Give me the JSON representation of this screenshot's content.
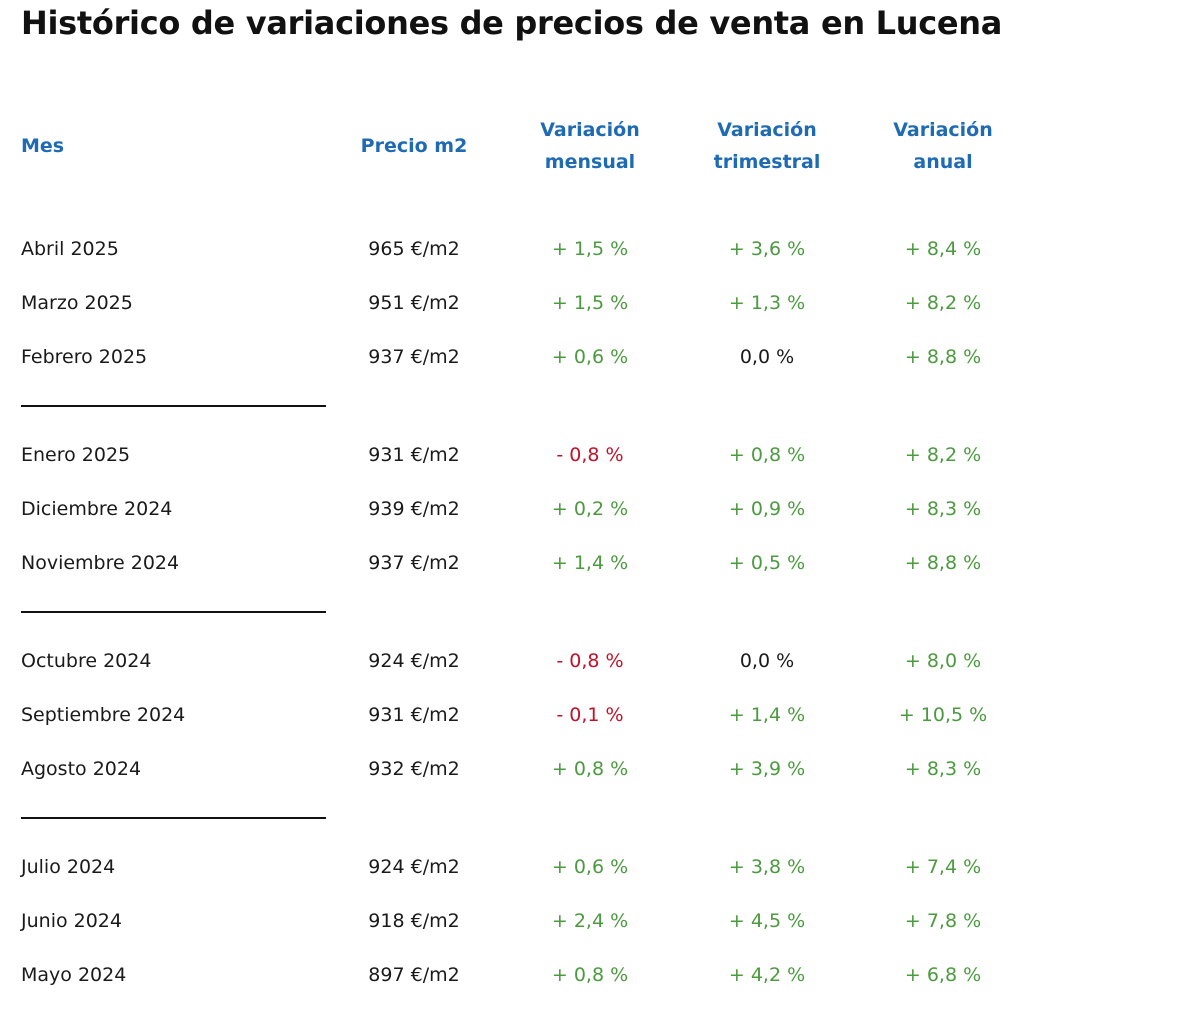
{
  "title": "Histórico de variaciones de precios de venta en Lucena",
  "columns": {
    "mes": "Mes",
    "precio": "Precio m2",
    "mensual": [
      "Variación",
      "mensual"
    ],
    "trimestral": [
      "Variación",
      "trimestral"
    ],
    "anual": [
      "Variación",
      "anual"
    ]
  },
  "colors": {
    "header": "#1e6bb3",
    "positive": "#4c9a3f",
    "negative": "#c0132b",
    "neutral": "#1a1a1a"
  },
  "rows": [
    {
      "mes": "Abril 2025",
      "precio": "965 €/m2",
      "mensual": "+ 1,5 %",
      "trimestral": "+ 3,6 %",
      "anual": "+ 8,4 %"
    },
    {
      "mes": "Marzo 2025",
      "precio": "951 €/m2",
      "mensual": "+ 1,5 %",
      "trimestral": "+ 1,3 %",
      "anual": "+ 8,2 %"
    },
    {
      "mes": "Febrero 2025",
      "precio": "937 €/m2",
      "mensual": "+ 0,6 %",
      "trimestral": "0,0 %",
      "anual": "+ 8,8 %"
    },
    {
      "mes": "Enero 2025",
      "precio": "931 €/m2",
      "mensual": "- 0,8 %",
      "trimestral": "+ 0,8 %",
      "anual": "+ 8,2 %"
    },
    {
      "mes": "Diciembre 2024",
      "precio": "939 €/m2",
      "mensual": "+ 0,2 %",
      "trimestral": "+ 0,9 %",
      "anual": "+ 8,3 %"
    },
    {
      "mes": "Noviembre 2024",
      "precio": "937 €/m2",
      "mensual": "+ 1,4 %",
      "trimestral": "+ 0,5 %",
      "anual": "+ 8,8 %"
    },
    {
      "mes": "Octubre 2024",
      "precio": "924 €/m2",
      "mensual": "- 0,8 %",
      "trimestral": "0,0 %",
      "anual": "+ 8,0 %"
    },
    {
      "mes": "Septiembre 2024",
      "precio": "931 €/m2",
      "mensual": "- 0,1 %",
      "trimestral": "+ 1,4 %",
      "anual": "+ 10,5 %"
    },
    {
      "mes": "Agosto 2024",
      "precio": "932 €/m2",
      "mensual": "+ 0,8 %",
      "trimestral": "+ 3,9 %",
      "anual": "+ 8,3 %"
    },
    {
      "mes": "Julio 2024",
      "precio": "924 €/m2",
      "mensual": "+ 0,6 %",
      "trimestral": "+ 3,8 %",
      "anual": "+ 7,4 %"
    },
    {
      "mes": "Junio 2024",
      "precio": "918 €/m2",
      "mensual": "+ 2,4 %",
      "trimestral": "+ 4,5 %",
      "anual": "+ 7,8 %"
    },
    {
      "mes": "Mayo 2024",
      "precio": "897 €/m2",
      "mensual": "+ 0,8 %",
      "trimestral": "+ 4,2 %",
      "anual": "+ 6,8 %"
    }
  ]
}
